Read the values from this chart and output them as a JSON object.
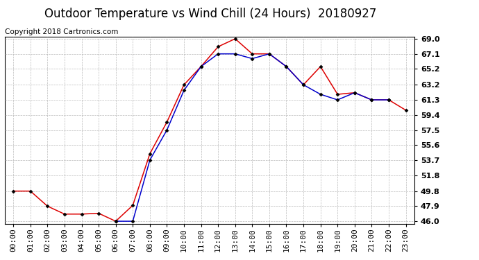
{
  "title": "Outdoor Temperature vs Wind Chill (24 Hours)  20180927",
  "copyright": "Copyright 2018 Cartronics.com",
  "hours": [
    "00:00",
    "01:00",
    "02:00",
    "03:00",
    "04:00",
    "05:00",
    "06:00",
    "07:00",
    "08:00",
    "09:00",
    "10:00",
    "11:00",
    "12:00",
    "13:00",
    "14:00",
    "15:00",
    "16:00",
    "17:00",
    "18:00",
    "19:00",
    "20:00",
    "21:00",
    "22:00",
    "23:00"
  ],
  "temperature": [
    49.8,
    49.8,
    47.9,
    46.9,
    46.9,
    47.0,
    46.0,
    48.0,
    54.5,
    58.5,
    63.2,
    65.5,
    68.0,
    69.0,
    67.1,
    67.1,
    65.5,
    63.2,
    65.5,
    62.0,
    62.2,
    61.3,
    61.3,
    60.0
  ],
  "wind_chill_full": [
    null,
    null,
    null,
    null,
    null,
    null,
    46.0,
    46.0,
    53.7,
    57.5,
    62.5,
    65.5,
    67.1,
    67.1,
    66.5,
    67.1,
    65.5,
    63.2,
    62.0,
    61.3,
    62.2,
    61.3,
    61.3,
    null
  ],
  "ylim_min": 46.0,
  "ylim_max": 69.0,
  "ytick_vals": [
    46.0,
    47.9,
    49.8,
    51.8,
    53.7,
    55.6,
    57.5,
    59.4,
    61.3,
    63.2,
    65.2,
    67.1,
    69.0
  ],
  "ytick_labels": [
    "46.0",
    "47.9",
    "49.8",
    "51.8",
    "53.7",
    "55.6",
    "57.5",
    "59.4",
    "61.3",
    "63.2",
    "65.2",
    "67.1",
    "69.0"
  ],
  "bg_color": "#ffffff",
  "grid_color": "#bbbbbb",
  "temp_color": "#dd0000",
  "wind_color": "#0000cc",
  "legend_wind_bg": "#0000cc",
  "legend_temp_bg": "#cc0000",
  "title_fontsize": 12,
  "copyright_fontsize": 7.5,
  "tick_fontsize": 8,
  "ylabel_fontsize": 8
}
